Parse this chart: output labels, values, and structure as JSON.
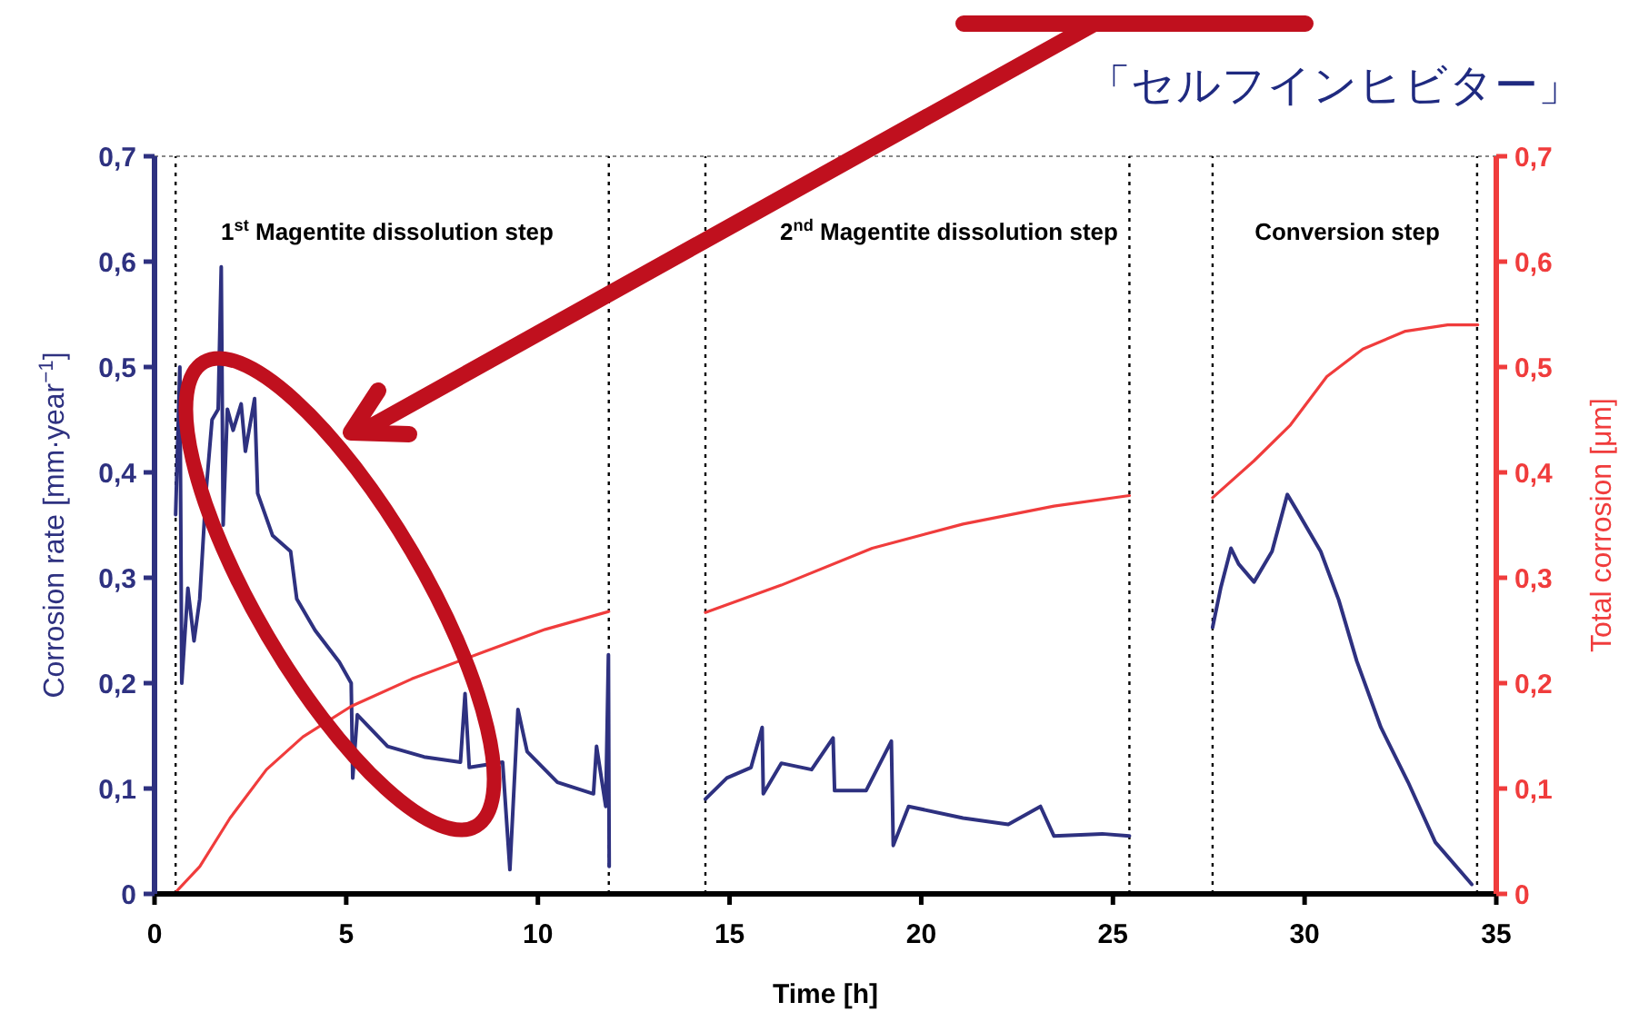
{
  "chart_data": {
    "type": "line",
    "xlabel": "Time [h]",
    "ylabel": "Corrosion rate [mm·year$^{−1}$]",
    "y2label": "Total corrosion [μm]",
    "xlim": [
      0,
      35
    ],
    "xticks": [
      0,
      5,
      10,
      15,
      20,
      25,
      30,
      35
    ],
    "ylim": [
      0,
      0.7
    ],
    "yticks": [
      0,
      {
        "value": 0.1,
        "label": "0,1"
      },
      {
        "value": 0.2,
        "label": "0,2"
      },
      {
        "value": 0.3,
        "label": "0,3"
      },
      {
        "value": 0.4,
        "label": "0,4"
      },
      {
        "value": 0.5,
        "label": "0,5"
      },
      {
        "value": 0.6,
        "label": "0,6"
      },
      {
        "value": 0.7,
        "label": "0,7"
      }
    ],
    "y2lim": [
      0,
      0.7
    ],
    "y2ticks": [
      0,
      {
        "value": 0.1,
        "label": "0,1"
      },
      {
        "value": 0.2,
        "label": "0,2"
      },
      {
        "value": 0.3,
        "label": "0,3"
      },
      {
        "value": 0.4,
        "label": "0,4"
      },
      {
        "value": 0.5,
        "label": "0,5"
      },
      {
        "value": 0.6,
        "label": "0,6"
      },
      {
        "value": 0.7,
        "label": "0,7"
      }
    ],
    "line_style": "solid",
    "series": [
      {
        "color": "#2e3180",
        "axis": "y",
        "x": [
          0.55,
          0.66,
          0.71,
          0.87,
          1.03,
          1.18,
          1.34,
          1.5,
          1.66,
          1.74,
          1.79,
          1.9,
          2.05,
          2.26,
          2.37,
          2.61,
          2.69,
          3.08,
          3.55,
          3.71,
          4.19,
          4.82,
          5.13,
          5.17,
          5.29,
          6.08,
          7.03,
          7.98,
          8.1,
          8.21,
          9.08,
          9.27,
          9.48,
          9.72,
          10.51,
          11.45,
          11.53,
          11.77,
          11.84,
          11.86
        ],
        "values": [
          0.36,
          0.5,
          0.2,
          0.29,
          0.24,
          0.28,
          0.38,
          0.45,
          0.46,
          0.595,
          0.35,
          0.46,
          0.44,
          0.465,
          0.42,
          0.47,
          0.38,
          0.34,
          0.325,
          0.28,
          0.25,
          0.22,
          0.2,
          0.11,
          0.17,
          0.14,
          0.13,
          0.125,
          0.19,
          0.12,
          0.125,
          0.023,
          0.175,
          0.135,
          0.106,
          0.095,
          0.14,
          0.083,
          0.227,
          0.026
        ]
      },
      {
        "color": "#2e3180",
        "axis": "y",
        "x": [
          14.37,
          14.93,
          15.56,
          15.85,
          15.88,
          16.35,
          17.14,
          17.7,
          17.74,
          18.56,
          19.22,
          19.27,
          19.67,
          21.09,
          22.27,
          23.11,
          23.46,
          24.72,
          25.43
        ],
        "values": [
          0.09,
          0.11,
          0.12,
          0.158,
          0.095,
          0.124,
          0.118,
          0.148,
          0.098,
          0.098,
          0.145,
          0.046,
          0.083,
          0.072,
          0.066,
          0.083,
          0.055,
          0.057,
          0.055
        ]
      },
      {
        "color": "#2e3180",
        "axis": "y",
        "x": [
          27.6,
          27.81,
          28.08,
          28.28,
          28.68,
          29.15,
          29.55,
          29.78,
          30.42,
          30.89,
          31.36,
          31.99,
          32.7,
          33.41,
          34.36
        ],
        "values": [
          0.253,
          0.29,
          0.328,
          0.313,
          0.296,
          0.325,
          0.379,
          0.365,
          0.325,
          0.279,
          0.221,
          0.158,
          0.106,
          0.049,
          0.009
        ]
      },
      {
        "color": "#f03c3c",
        "axis": "y2",
        "x": [
          0.51,
          1.18,
          1.97,
          2.92,
          3.87,
          5.13,
          6.71,
          8.61,
          10.19,
          11.85
        ],
        "values": [
          0,
          0.026,
          0.072,
          0.118,
          0.149,
          0.178,
          0.204,
          0.23,
          0.251,
          0.268
        ]
      },
      {
        "color": "#f03c3c",
        "axis": "y2",
        "x": [
          14.37,
          16.35,
          18.72,
          21.09,
          23.46,
          25.43
        ],
        "values": [
          0.267,
          0.293,
          0.328,
          0.351,
          0.368,
          0.378
        ]
      },
      {
        "color": "#f03c3c",
        "axis": "y2",
        "x": [
          27.6,
          28.68,
          29.63,
          30.58,
          31.52,
          32.63,
          33.73,
          34.52
        ],
        "values": [
          0.376,
          0.411,
          0.445,
          0.491,
          0.517,
          0.534,
          0.54,
          0.54
        ]
      }
    ],
    "ref_lines": [
      {
        "axis": "x",
        "value": 0.55,
        "line_style": "dotted"
      },
      {
        "axis": "x",
        "value": 11.85,
        "line_style": "dotted"
      },
      {
        "axis": "x",
        "value": 14.37,
        "line_style": "dotted"
      },
      {
        "axis": "x",
        "value": 25.43,
        "line_style": "dotted"
      },
      {
        "axis": "x",
        "value": 27.6,
        "line_style": "dotted"
      },
      {
        "axis": "x",
        "value": 34.5,
        "line_style": "dotted"
      }
    ],
    "annotations": [
      "「セルフインヒビター」",
      "1$^{st}$ Magentite dissolution step",
      "2$^{nd}$ Magentite dissolution step",
      "Conversion step"
    ]
  }
}
